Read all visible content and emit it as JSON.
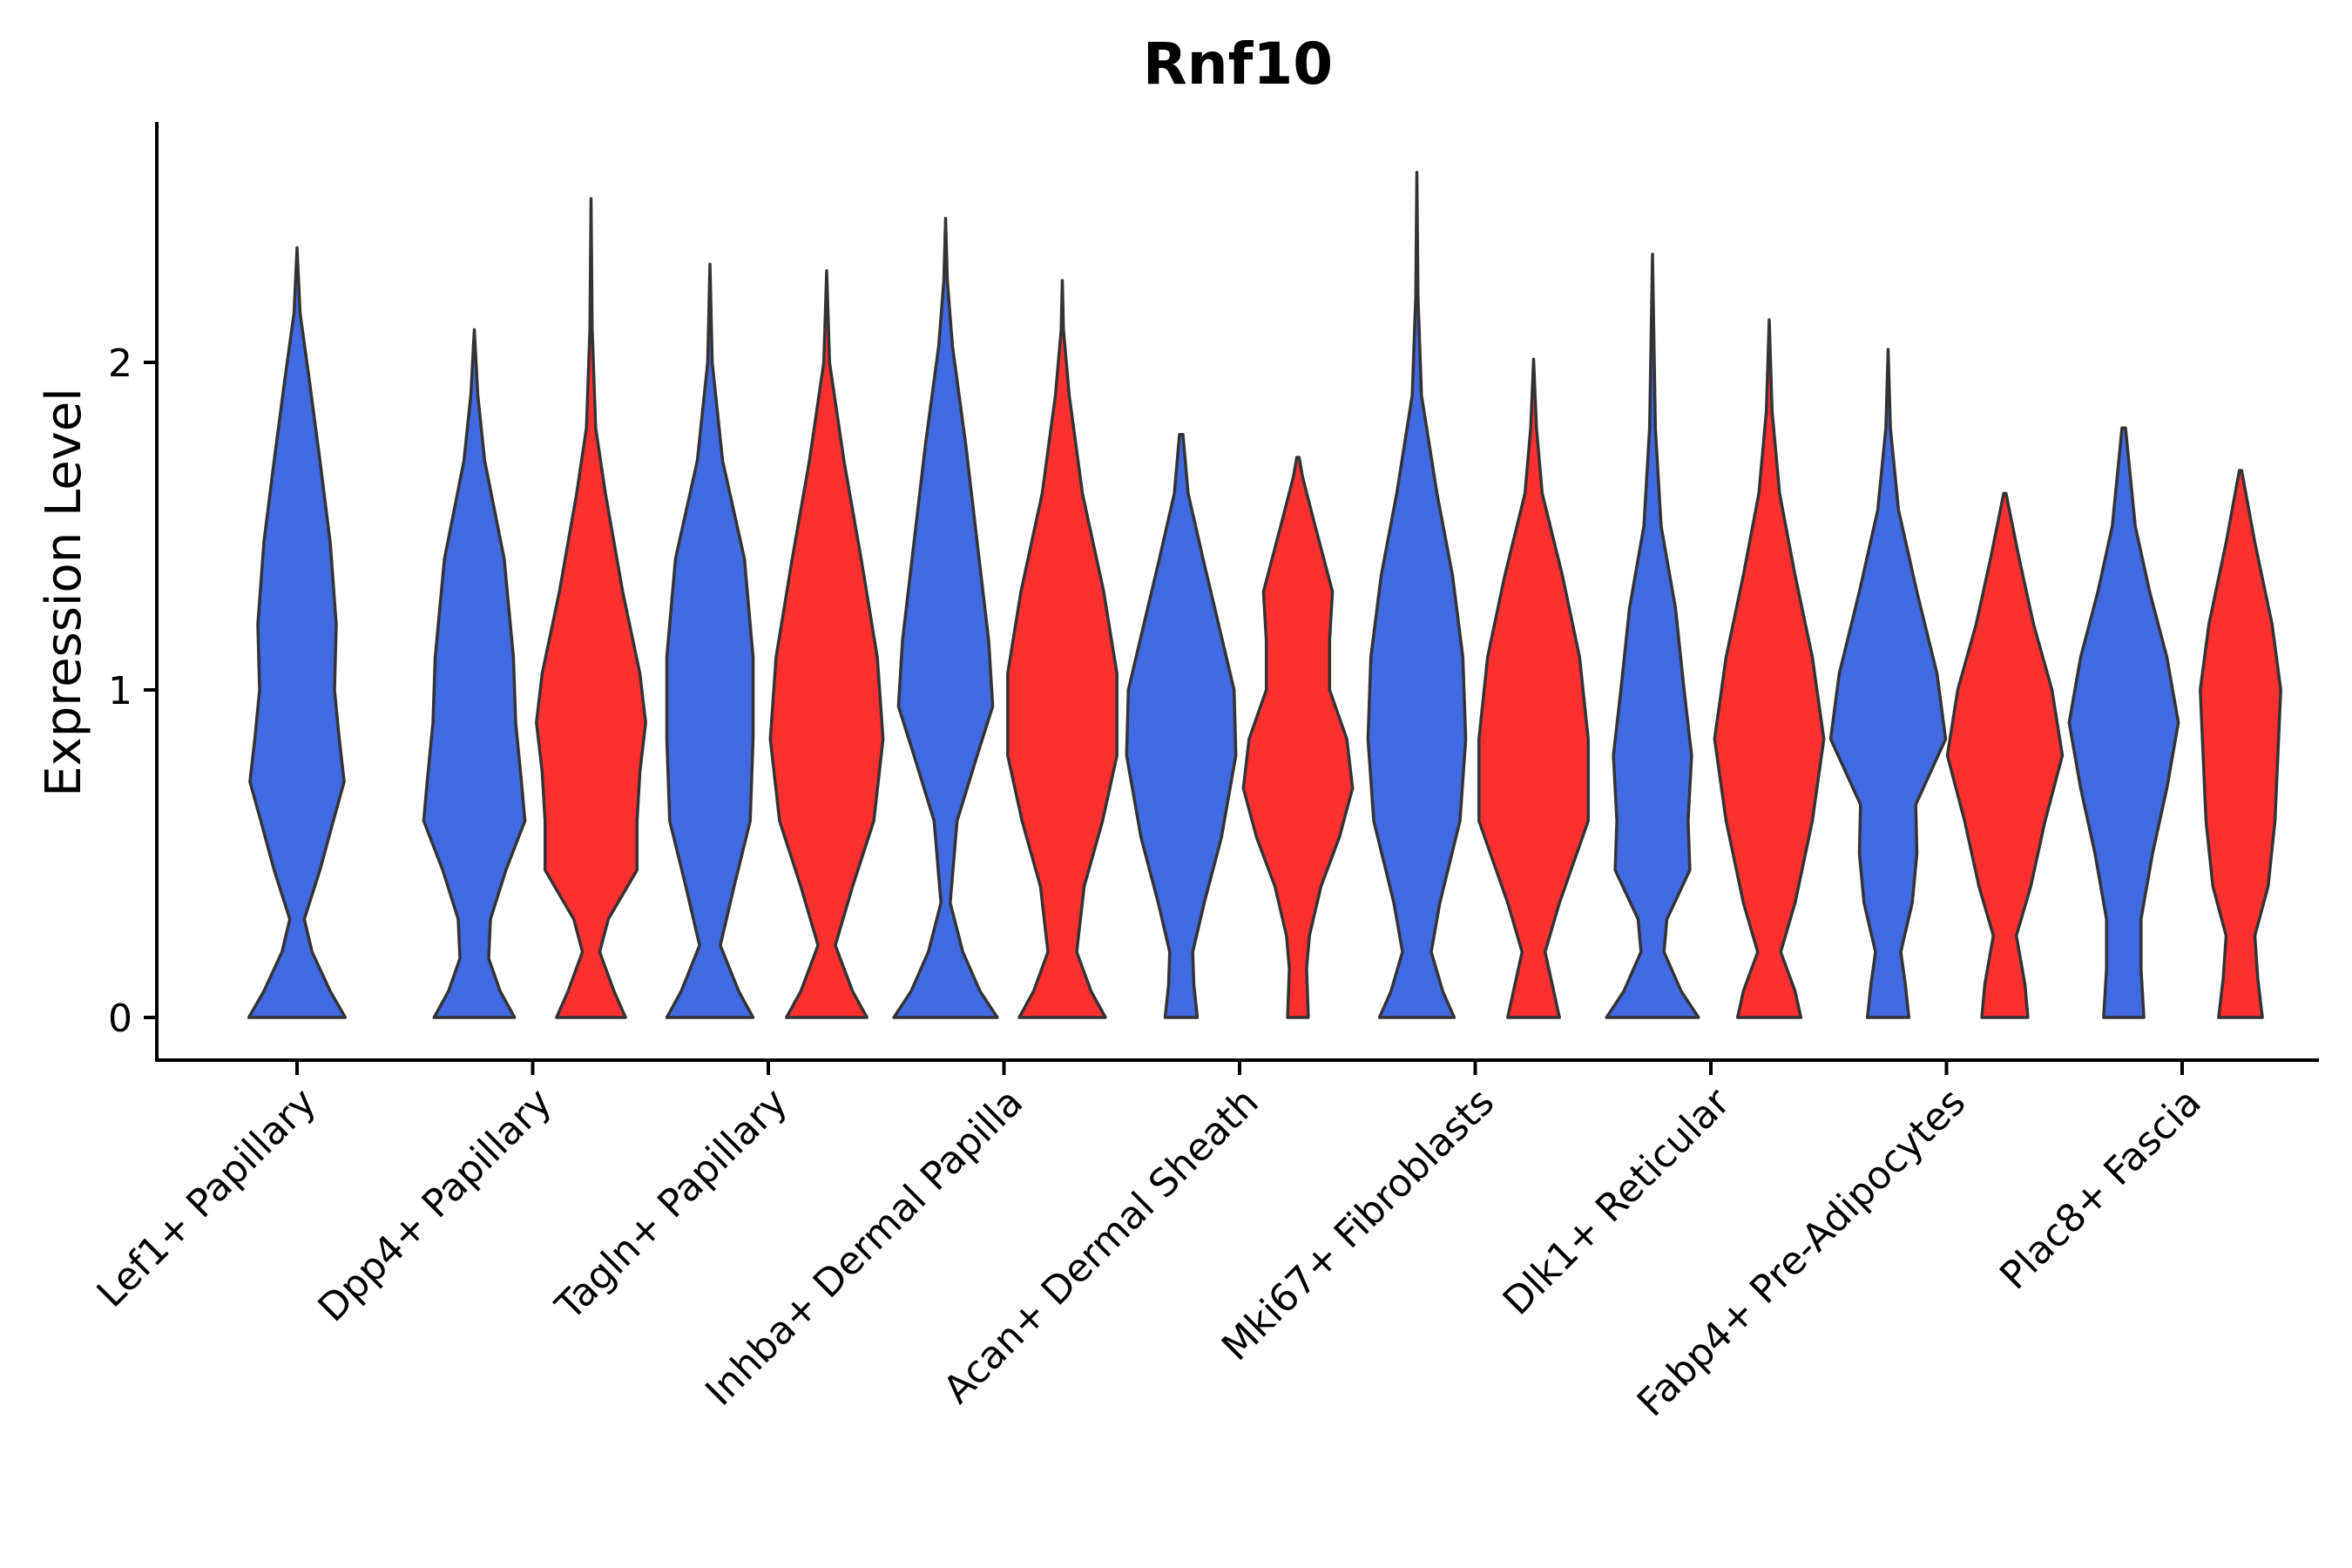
{
  "chart_data": {
    "type": "violin",
    "title": "Rnf10",
    "xlabel": "",
    "ylabel": "Expression Level",
    "ylim": [
      -0.13,
      2.7
    ],
    "yticks": [
      0,
      1,
      2
    ],
    "grid": false,
    "legend": "none",
    "colors": {
      "group1": "#4169E1",
      "group2": "#FF3030",
      "outline": "#333333"
    },
    "categories": [
      "Lef1+ Papillary",
      "Dpp4+ Papillary",
      "Tagln+ Papillary",
      "Inhba+ Dermal Papilla",
      "Acan+ Dermal Sheath",
      "Mki67+ Fibroblasts",
      "Dlk1+ Reticular",
      "Fabp4+ Pre-Adipocytes",
      "Plac8+ Fascia"
    ],
    "violins": [
      {
        "category": "Lef1+ Papillary",
        "group": "group1",
        "max": 2.35,
        "profile": [
          [
            0,
            0.8
          ],
          [
            0.08,
            0.55
          ],
          [
            0.2,
            0.25
          ],
          [
            0.3,
            0.12
          ],
          [
            0.45,
            0.38
          ],
          [
            0.6,
            0.6
          ],
          [
            0.72,
            0.78
          ],
          [
            0.85,
            0.7
          ],
          [
            1.0,
            0.62
          ],
          [
            1.2,
            0.65
          ],
          [
            1.45,
            0.55
          ],
          [
            1.7,
            0.38
          ],
          [
            1.95,
            0.2
          ],
          [
            2.15,
            0.05
          ],
          [
            2.35,
            0.0
          ]
        ]
      },
      {
        "category": "Dpp4+ Papillary",
        "group": "group1",
        "max": 2.1,
        "profile": [
          [
            0,
            0.7
          ],
          [
            0.08,
            0.45
          ],
          [
            0.18,
            0.25
          ],
          [
            0.3,
            0.28
          ],
          [
            0.45,
            0.55
          ],
          [
            0.6,
            0.88
          ],
          [
            0.72,
            0.82
          ],
          [
            0.9,
            0.72
          ],
          [
            1.1,
            0.68
          ],
          [
            1.4,
            0.52
          ],
          [
            1.7,
            0.18
          ],
          [
            1.9,
            0.06
          ],
          [
            2.1,
            0.0
          ]
        ]
      },
      {
        "category": "Dpp4+ Papillary",
        "group": "group2",
        "max": 2.5,
        "profile": [
          [
            0,
            0.6
          ],
          [
            0.08,
            0.4
          ],
          [
            0.2,
            0.15
          ],
          [
            0.3,
            0.3
          ],
          [
            0.45,
            0.8
          ],
          [
            0.6,
            0.8
          ],
          [
            0.75,
            0.85
          ],
          [
            0.9,
            0.95
          ],
          [
            1.05,
            0.85
          ],
          [
            1.3,
            0.55
          ],
          [
            1.6,
            0.25
          ],
          [
            1.8,
            0.08
          ],
          [
            2.1,
            0.02
          ],
          [
            2.5,
            0.0
          ]
        ]
      },
      {
        "category": "Tagln+ Papillary",
        "group": "group1",
        "max": 2.3,
        "profile": [
          [
            0,
            0.75
          ],
          [
            0.08,
            0.5
          ],
          [
            0.22,
            0.18
          ],
          [
            0.4,
            0.42
          ],
          [
            0.6,
            0.7
          ],
          [
            0.85,
            0.75
          ],
          [
            1.1,
            0.75
          ],
          [
            1.4,
            0.6
          ],
          [
            1.7,
            0.22
          ],
          [
            2.0,
            0.04
          ],
          [
            2.3,
            0.0
          ]
        ]
      },
      {
        "category": "Tagln+ Papillary",
        "group": "group2",
        "max": 2.28,
        "profile": [
          [
            0,
            0.7
          ],
          [
            0.08,
            0.45
          ],
          [
            0.22,
            0.15
          ],
          [
            0.4,
            0.45
          ],
          [
            0.6,
            0.82
          ],
          [
            0.85,
            0.98
          ],
          [
            1.1,
            0.88
          ],
          [
            1.4,
            0.6
          ],
          [
            1.7,
            0.3
          ],
          [
            2.0,
            0.05
          ],
          [
            2.28,
            0.0
          ]
        ]
      },
      {
        "category": "Inhba+ Dermal Papilla",
        "group": "group1",
        "max": 2.44,
        "profile": [
          [
            0,
            0.9
          ],
          [
            0.08,
            0.6
          ],
          [
            0.2,
            0.3
          ],
          [
            0.35,
            0.08
          ],
          [
            0.6,
            0.2
          ],
          [
            0.8,
            0.55
          ],
          [
            0.95,
            0.82
          ],
          [
            1.15,
            0.75
          ],
          [
            1.45,
            0.55
          ],
          [
            1.75,
            0.35
          ],
          [
            2.05,
            0.12
          ],
          [
            2.25,
            0.03
          ],
          [
            2.44,
            0.0
          ]
        ]
      },
      {
        "category": "Inhba+ Dermal Papilla",
        "group": "group2",
        "max": 2.25,
        "profile": [
          [
            0,
            0.75
          ],
          [
            0.08,
            0.5
          ],
          [
            0.2,
            0.25
          ],
          [
            0.4,
            0.38
          ],
          [
            0.6,
            0.7
          ],
          [
            0.8,
            0.95
          ],
          [
            1.05,
            0.95
          ],
          [
            1.3,
            0.72
          ],
          [
            1.6,
            0.35
          ],
          [
            1.9,
            0.12
          ],
          [
            2.1,
            0.02
          ],
          [
            2.25,
            0.0
          ]
        ]
      },
      {
        "category": "Acan+ Dermal Sheath",
        "group": "group1",
        "max": 1.78,
        "profile": [
          [
            0,
            0.28
          ],
          [
            0.1,
            0.22
          ],
          [
            0.2,
            0.2
          ],
          [
            0.35,
            0.4
          ],
          [
            0.55,
            0.7
          ],
          [
            0.8,
            0.95
          ],
          [
            1.0,
            0.92
          ],
          [
            1.2,
            0.65
          ],
          [
            1.4,
            0.38
          ],
          [
            1.6,
            0.12
          ],
          [
            1.78,
            0.03
          ]
        ]
      },
      {
        "category": "Acan+ Dermal Sheath",
        "group": "group2",
        "max": 1.71,
        "profile": [
          [
            0,
            0.18
          ],
          [
            0.15,
            0.15
          ],
          [
            0.25,
            0.2
          ],
          [
            0.4,
            0.4
          ],
          [
            0.55,
            0.72
          ],
          [
            0.7,
            0.95
          ],
          [
            0.85,
            0.85
          ],
          [
            1.0,
            0.55
          ],
          [
            1.15,
            0.55
          ],
          [
            1.3,
            0.6
          ],
          [
            1.5,
            0.3
          ],
          [
            1.65,
            0.08
          ],
          [
            1.71,
            0.02
          ]
        ]
      },
      {
        "category": "Mki67+ Fibroblasts",
        "group": "group1",
        "max": 2.58,
        "profile": [
          [
            0,
            0.65
          ],
          [
            0.08,
            0.45
          ],
          [
            0.2,
            0.25
          ],
          [
            0.35,
            0.4
          ],
          [
            0.6,
            0.75
          ],
          [
            0.85,
            0.85
          ],
          [
            1.1,
            0.8
          ],
          [
            1.35,
            0.62
          ],
          [
            1.6,
            0.35
          ],
          [
            1.9,
            0.08
          ],
          [
            2.2,
            0.02
          ],
          [
            2.58,
            0.0
          ]
        ]
      },
      {
        "category": "Mki67+ Fibroblasts",
        "group": "group2",
        "max": 2.01,
        "profile": [
          [
            0,
            0.45
          ],
          [
            0.08,
            0.35
          ],
          [
            0.2,
            0.2
          ],
          [
            0.35,
            0.45
          ],
          [
            0.6,
            0.95
          ],
          [
            0.85,
            0.95
          ],
          [
            1.1,
            0.8
          ],
          [
            1.35,
            0.5
          ],
          [
            1.6,
            0.15
          ],
          [
            1.8,
            0.05
          ],
          [
            2.01,
            0.0
          ]
        ]
      },
      {
        "category": "Dlk1+ Reticular",
        "group": "group1",
        "max": 2.33,
        "profile": [
          [
            0,
            0.8
          ],
          [
            0.08,
            0.5
          ],
          [
            0.2,
            0.2
          ],
          [
            0.3,
            0.25
          ],
          [
            0.45,
            0.65
          ],
          [
            0.6,
            0.62
          ],
          [
            0.8,
            0.68
          ],
          [
            1.0,
            0.55
          ],
          [
            1.25,
            0.4
          ],
          [
            1.5,
            0.15
          ],
          [
            1.8,
            0.05
          ],
          [
            2.33,
            0.0
          ]
        ]
      },
      {
        "category": "Dlk1+ Reticular",
        "group": "group2",
        "max": 2.13,
        "profile": [
          [
            0,
            0.55
          ],
          [
            0.08,
            0.45
          ],
          [
            0.2,
            0.2
          ],
          [
            0.35,
            0.45
          ],
          [
            0.6,
            0.75
          ],
          [
            0.85,
            0.95
          ],
          [
            1.1,
            0.75
          ],
          [
            1.35,
            0.45
          ],
          [
            1.6,
            0.18
          ],
          [
            1.85,
            0.05
          ],
          [
            2.13,
            0.0
          ]
        ]
      },
      {
        "category": "Fabp4+ Pre-Adipocytes",
        "group": "group1",
        "max": 2.04,
        "profile": [
          [
            0,
            0.36
          ],
          [
            0.1,
            0.3
          ],
          [
            0.2,
            0.22
          ],
          [
            0.35,
            0.42
          ],
          [
            0.5,
            0.5
          ],
          [
            0.65,
            0.48
          ],
          [
            0.85,
            1.0
          ],
          [
            1.05,
            0.85
          ],
          [
            1.3,
            0.5
          ],
          [
            1.55,
            0.18
          ],
          [
            1.8,
            0.04
          ],
          [
            2.04,
            0.0
          ]
        ]
      },
      {
        "category": "Fabp4+ Pre-Adipocytes",
        "group": "group2",
        "max": 1.6,
        "profile": [
          [
            0,
            0.4
          ],
          [
            0.1,
            0.35
          ],
          [
            0.25,
            0.2
          ],
          [
            0.4,
            0.45
          ],
          [
            0.6,
            0.7
          ],
          [
            0.8,
            1.0
          ],
          [
            1.0,
            0.82
          ],
          [
            1.2,
            0.5
          ],
          [
            1.4,
            0.25
          ],
          [
            1.6,
            0.02
          ]
        ]
      },
      {
        "category": "Plac8+ Fascia",
        "group": "group1",
        "max": 1.8,
        "profile": [
          [
            0,
            0.35
          ],
          [
            0.15,
            0.3
          ],
          [
            0.3,
            0.3
          ],
          [
            0.5,
            0.5
          ],
          [
            0.7,
            0.75
          ],
          [
            0.9,
            0.95
          ],
          [
            1.1,
            0.75
          ],
          [
            1.3,
            0.45
          ],
          [
            1.5,
            0.2
          ],
          [
            1.8,
            0.03
          ]
        ]
      },
      {
        "category": "Plac8+ Fascia",
        "group": "group2",
        "max": 1.67,
        "profile": [
          [
            0,
            0.38
          ],
          [
            0.12,
            0.3
          ],
          [
            0.25,
            0.25
          ],
          [
            0.4,
            0.48
          ],
          [
            0.6,
            0.6
          ],
          [
            0.8,
            0.65
          ],
          [
            1.0,
            0.7
          ],
          [
            1.2,
            0.55
          ],
          [
            1.45,
            0.25
          ],
          [
            1.67,
            0.02
          ]
        ]
      }
    ]
  }
}
